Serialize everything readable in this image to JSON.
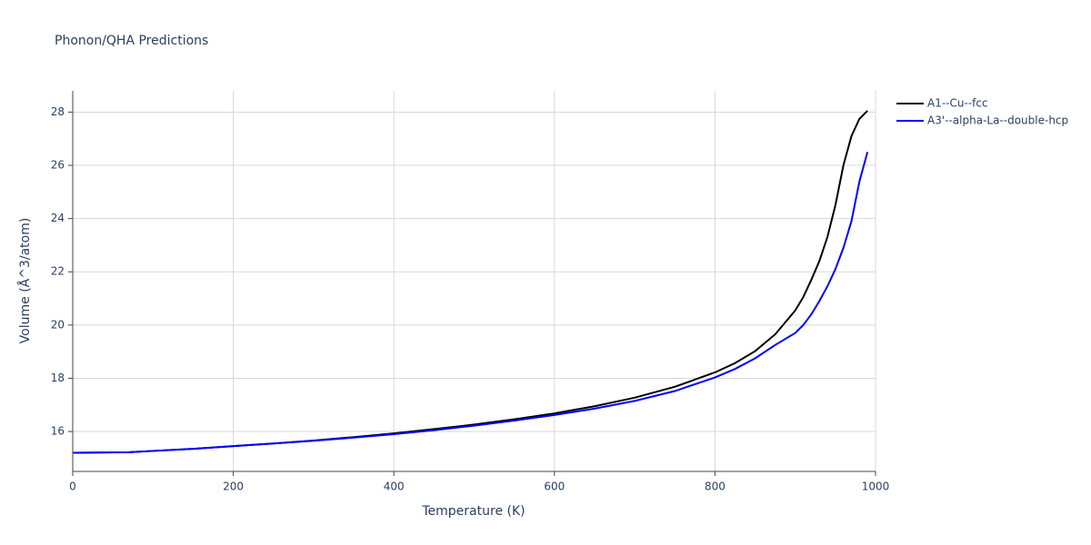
{
  "chart_data": {
    "type": "line",
    "title": "Phonon/QHA Predictions",
    "x_label": "Temperature (K)",
    "y_label": "Volume (Å^3/atom)",
    "x": [
      0,
      70,
      100,
      150,
      200,
      250,
      300,
      350,
      400,
      450,
      500,
      550,
      600,
      650,
      700,
      750,
      800,
      825,
      850,
      875,
      900,
      910,
      920,
      930,
      940,
      950,
      960,
      970,
      980,
      990
    ],
    "series": [
      {
        "name": "A1--Cu--fcc",
        "color": "#000000",
        "values": [
          15.2,
          15.22,
          15.27,
          15.35,
          15.45,
          15.55,
          15.66,
          15.79,
          15.93,
          16.09,
          16.26,
          16.46,
          16.68,
          16.95,
          17.27,
          17.68,
          18.22,
          18.57,
          19.02,
          19.65,
          20.55,
          21.05,
          21.7,
          22.4,
          23.3,
          24.5,
          26.0,
          27.1,
          27.75,
          28.05
        ]
      },
      {
        "name": "A3'--alpha-La--double-hcp",
        "color": "#0000ff",
        "values": [
          15.2,
          15.22,
          15.27,
          15.35,
          15.45,
          15.55,
          15.65,
          15.77,
          15.9,
          16.05,
          16.22,
          16.41,
          16.62,
          16.86,
          17.15,
          17.52,
          18.03,
          18.35,
          18.75,
          19.25,
          19.7,
          20.0,
          20.4,
          20.9,
          21.45,
          22.1,
          22.9,
          23.9,
          25.4,
          26.5
        ]
      }
    ],
    "xlim": [
      0,
      1000
    ],
    "xticks": [
      0,
      200,
      400,
      600,
      800,
      1000
    ],
    "ylim": [
      14.5,
      28.8
    ],
    "yticks": [
      16,
      18,
      20,
      22,
      24,
      26,
      28
    ],
    "grid": true,
    "legend": "right"
  }
}
